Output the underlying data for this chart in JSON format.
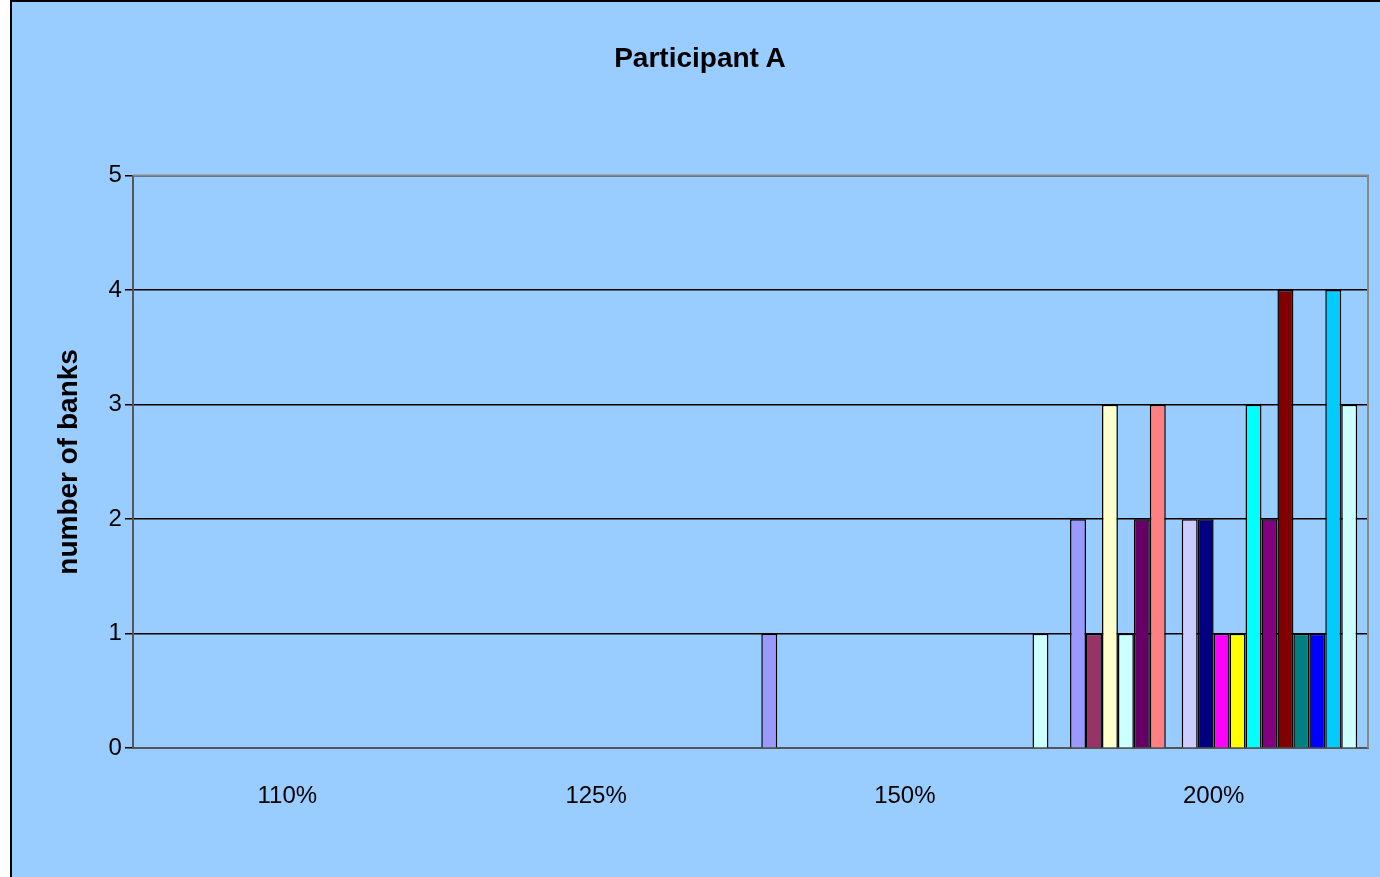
{
  "chart_data": {
    "type": "bar",
    "title": "Participant A",
    "ylabel": "number of banks",
    "categories": [
      "110%",
      "125%",
      "150%",
      "200%"
    ],
    "series": [
      {
        "color": "#9999ff",
        "values": [
          0,
          0,
          1,
          2
        ]
      },
      {
        "color": "#993366",
        "values": [
          0,
          0,
          0,
          1
        ]
      },
      {
        "color": "#ffffcc",
        "values": [
          0,
          0,
          0,
          3
        ]
      },
      {
        "color": "#ccffff",
        "values": [
          0,
          0,
          0,
          1
        ]
      },
      {
        "color": "#660066",
        "values": [
          0,
          0,
          0,
          2
        ]
      },
      {
        "color": "#ff8080",
        "values": [
          0,
          0,
          0,
          3
        ]
      },
      {
        "color": "#0066cc",
        "values": [
          0,
          0,
          0,
          0
        ]
      },
      {
        "color": "#ccccff",
        "values": [
          0,
          0,
          0,
          2
        ]
      },
      {
        "color": "#000080",
        "values": [
          0,
          0,
          0,
          2
        ]
      },
      {
        "color": "#ff00ff",
        "values": [
          0,
          0,
          0,
          1
        ]
      },
      {
        "color": "#ffff00",
        "values": [
          0,
          0,
          0,
          1
        ]
      },
      {
        "color": "#00ffff",
        "values": [
          0,
          0,
          0,
          3
        ]
      },
      {
        "color": "#800080",
        "values": [
          0,
          0,
          0,
          2
        ]
      },
      {
        "color": "#800000",
        "values": [
          0,
          0,
          0,
          4
        ]
      },
      {
        "color": "#008080",
        "values": [
          0,
          0,
          0,
          1
        ]
      },
      {
        "color": "#0000ff",
        "values": [
          0,
          0,
          0,
          1
        ]
      },
      {
        "color": "#00ccff",
        "values": [
          0,
          0,
          0,
          4
        ]
      },
      {
        "color": "#ccffff",
        "values": [
          0,
          0,
          1,
          3
        ]
      }
    ],
    "ylim": [
      0,
      5
    ],
    "yticks": [
      0,
      1,
      2,
      3,
      4,
      5
    ],
    "grid": "y",
    "legend": false
  }
}
